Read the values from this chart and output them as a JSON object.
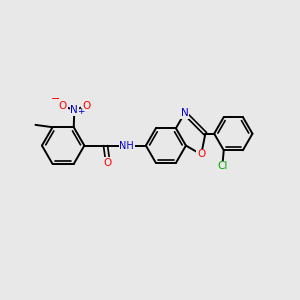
{
  "bg_color": "#e8e8e8",
  "bond_color": "#000000",
  "atom_colors": {
    "O": "#ff0000",
    "N": "#0000cc",
    "Cl": "#00aa00",
    "C": "#000000",
    "H": "#888888"
  }
}
